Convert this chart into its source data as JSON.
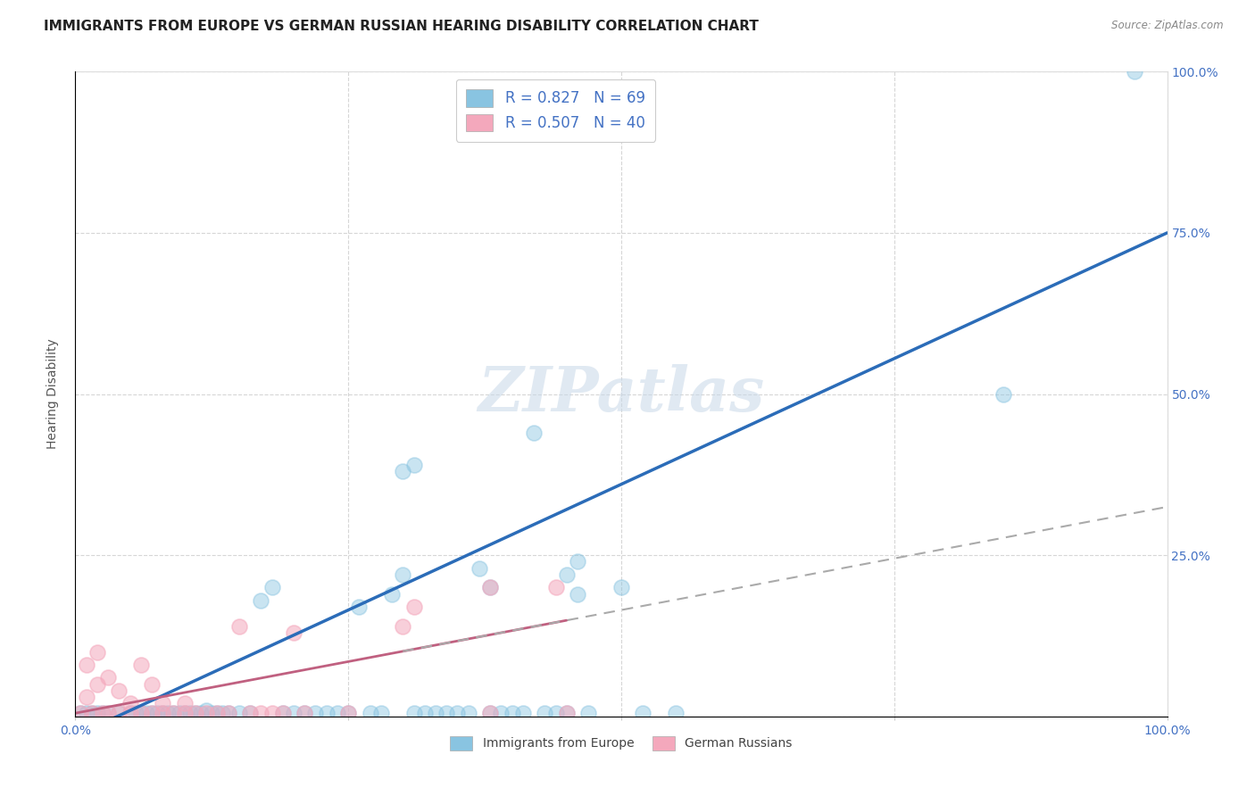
{
  "title": "IMMIGRANTS FROM EUROPE VS GERMAN RUSSIAN HEARING DISABILITY CORRELATION CHART",
  "source": "Source: ZipAtlas.com",
  "ylabel": "Hearing Disability",
  "xlim": [
    0.0,
    1.0
  ],
  "ylim": [
    0.0,
    1.0
  ],
  "xtick_positions": [
    0.0,
    0.25,
    0.5,
    0.75,
    1.0
  ],
  "ytick_positions": [
    0.0,
    0.25,
    0.5,
    0.75,
    1.0
  ],
  "grid_color": "#cccccc",
  "background_color": "#ffffff",
  "watermark": "ZIPatlas",
  "blue_marker_color": "#89c4e1",
  "pink_marker_color": "#f4a8bc",
  "blue_line_color": "#2b6cb8",
  "pink_line_color": "#c06080",
  "legend_R_blue": "R = 0.827",
  "legend_N_blue": "N = 69",
  "legend_R_pink": "R = 0.507",
  "legend_N_pink": "N = 40",
  "blue_scatter_x": [
    0.005,
    0.01,
    0.015,
    0.02,
    0.025,
    0.03,
    0.04,
    0.05,
    0.055,
    0.06,
    0.065,
    0.07,
    0.075,
    0.08,
    0.085,
    0.09,
    0.095,
    0.1,
    0.105,
    0.11,
    0.115,
    0.12,
    0.125,
    0.13,
    0.135,
    0.14,
    0.15,
    0.16,
    0.17,
    0.18,
    0.19,
    0.2,
    0.21,
    0.22,
    0.23,
    0.24,
    0.25,
    0.26,
    0.27,
    0.28,
    0.29,
    0.3,
    0.31,
    0.32,
    0.33,
    0.34,
    0.35,
    0.36,
    0.37,
    0.38,
    0.39,
    0.4,
    0.41,
    0.42,
    0.43,
    0.44,
    0.45,
    0.46,
    0.47,
    0.5,
    0.52,
    0.55,
    0.85,
    0.97,
    0.3,
    0.31,
    0.38,
    0.45,
    0.46
  ],
  "blue_scatter_y": [
    0.005,
    0.005,
    0.005,
    0.005,
    0.005,
    0.005,
    0.005,
    0.005,
    0.005,
    0.005,
    0.005,
    0.005,
    0.005,
    0.005,
    0.005,
    0.005,
    0.005,
    0.005,
    0.005,
    0.005,
    0.005,
    0.01,
    0.005,
    0.005,
    0.005,
    0.005,
    0.005,
    0.005,
    0.18,
    0.2,
    0.005,
    0.005,
    0.005,
    0.005,
    0.005,
    0.005,
    0.005,
    0.17,
    0.005,
    0.005,
    0.19,
    0.22,
    0.005,
    0.005,
    0.005,
    0.005,
    0.005,
    0.005,
    0.23,
    0.005,
    0.005,
    0.005,
    0.005,
    0.44,
    0.005,
    0.005,
    0.005,
    0.19,
    0.005,
    0.2,
    0.005,
    0.005,
    0.5,
    1.0,
    0.38,
    0.39,
    0.2,
    0.22,
    0.24
  ],
  "pink_scatter_x": [
    0.005,
    0.01,
    0.01,
    0.015,
    0.02,
    0.02,
    0.025,
    0.03,
    0.03,
    0.04,
    0.04,
    0.05,
    0.05,
    0.06,
    0.06,
    0.07,
    0.07,
    0.08,
    0.08,
    0.09,
    0.1,
    0.1,
    0.11,
    0.12,
    0.13,
    0.14,
    0.15,
    0.16,
    0.17,
    0.18,
    0.19,
    0.2,
    0.21,
    0.25,
    0.3,
    0.31,
    0.38,
    0.38,
    0.44,
    0.45
  ],
  "pink_scatter_y": [
    0.005,
    0.03,
    0.08,
    0.005,
    0.05,
    0.1,
    0.005,
    0.06,
    0.005,
    0.04,
    0.005,
    0.02,
    0.005,
    0.08,
    0.005,
    0.005,
    0.05,
    0.005,
    0.02,
    0.005,
    0.005,
    0.02,
    0.005,
    0.005,
    0.005,
    0.005,
    0.14,
    0.005,
    0.005,
    0.005,
    0.005,
    0.13,
    0.005,
    0.005,
    0.14,
    0.17,
    0.2,
    0.005,
    0.2,
    0.005
  ],
  "title_fontsize": 11,
  "axis_label_fontsize": 10,
  "tick_fontsize": 10,
  "legend_fontsize": 12
}
